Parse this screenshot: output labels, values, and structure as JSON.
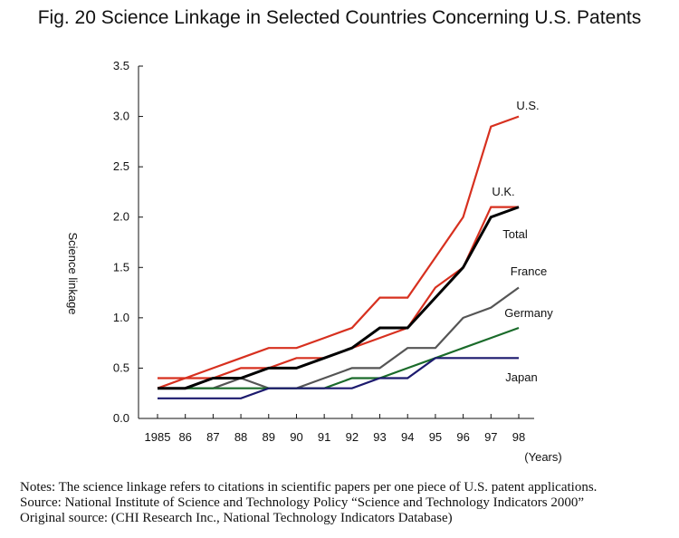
{
  "chart_data": {
    "type": "line",
    "title": "Fig. 20  Science Linkage in Selected Countries Concerning U.S. Patents",
    "ylabel": "Science linkage",
    "xlabel": "(Years)",
    "x": [
      "1985",
      "86",
      "87",
      "88",
      "89",
      "90",
      "91",
      "92",
      "93",
      "94",
      "95",
      "96",
      "97",
      "98"
    ],
    "yticks": [
      "0.0",
      "0.5",
      "1.0",
      "1.5",
      "2.0",
      "2.5",
      "3.0",
      "3.5"
    ],
    "ylim": [
      0,
      3.5
    ],
    "grid": false,
    "series": [
      {
        "name": "U.S.",
        "color": "#d7301f",
        "values": [
          0.4,
          0.4,
          0.5,
          0.6,
          0.7,
          0.7,
          0.8,
          0.9,
          1.2,
          1.2,
          1.6,
          2.0,
          2.9,
          3.0
        ]
      },
      {
        "name": "U.K.",
        "color": "#d7301f",
        "values": [
          0.3,
          0.4,
          0.4,
          0.5,
          0.5,
          0.6,
          0.6,
          0.7,
          0.8,
          0.9,
          1.3,
          1.5,
          2.1,
          2.1
        ]
      },
      {
        "name": "Total",
        "color": "#000000",
        "values": [
          0.3,
          0.3,
          0.4,
          0.4,
          0.5,
          0.5,
          0.6,
          0.7,
          0.9,
          0.9,
          1.2,
          1.5,
          2.0,
          2.1
        ]
      },
      {
        "name": "France",
        "color": "#555555",
        "values": [
          0.3,
          0.3,
          0.3,
          0.4,
          0.3,
          0.3,
          0.4,
          0.5,
          0.5,
          0.7,
          0.7,
          1.0,
          1.1,
          1.3
        ]
      },
      {
        "name": "Germany",
        "color": "#1a6b2a",
        "values": [
          0.3,
          0.3,
          0.3,
          0.3,
          0.3,
          0.3,
          0.3,
          0.4,
          0.4,
          0.5,
          0.6,
          0.7,
          0.8,
          0.9
        ]
      },
      {
        "name": "Japan",
        "color": "#1c1a6e",
        "values": [
          0.2,
          0.2,
          0.2,
          0.2,
          0.3,
          0.3,
          0.3,
          0.3,
          0.4,
          0.4,
          0.6,
          0.6,
          0.6,
          0.6
        ]
      }
    ]
  },
  "notes": [
    "Notes: The science linkage refers to citations in scientific papers per one piece of U.S. patent applications.",
    "Source: National Institute of Science and Technology Policy “Science and Technology Indicators 2000”",
    "Original source:   (CHI Research Inc., National Technology Indicators Database)"
  ]
}
